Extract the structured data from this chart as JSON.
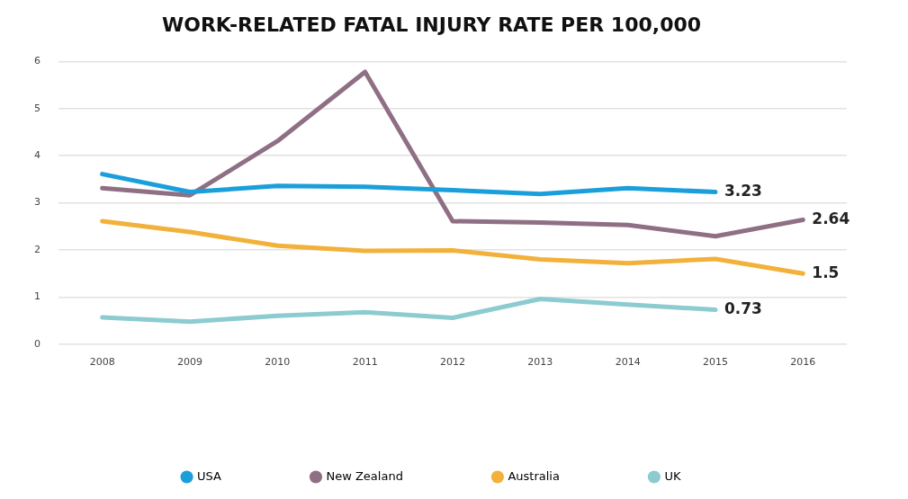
{
  "chart_data": {
    "type": "line",
    "title": "WORK-RELATED FATAL INJURY RATE PER 100,000",
    "categories": [
      "2008",
      "2009",
      "2010",
      "2011",
      "2012",
      "2013",
      "2014",
      "2015",
      "2016"
    ],
    "ylim": [
      0,
      6
    ],
    "yticks": [
      0,
      1,
      2,
      3,
      4,
      5,
      6
    ],
    "grid": "y",
    "legend": "bottom",
    "marker": "none",
    "line_style": "solid",
    "series": [
      {
        "name": "USA",
        "color": "#1a9fdb",
        "values": [
          3.61,
          3.23,
          3.36,
          3.34,
          3.27,
          3.19,
          3.31,
          3.23,
          null
        ],
        "value_labels": [
          null,
          null,
          null,
          null,
          null,
          null,
          null,
          "3.23",
          null
        ]
      },
      {
        "name": "New Zealand",
        "color": "#8f6f84",
        "values": [
          3.31,
          3.16,
          4.31,
          5.78,
          2.61,
          2.58,
          2.53,
          2.29,
          2.64
        ],
        "value_labels": [
          null,
          null,
          null,
          null,
          null,
          null,
          null,
          null,
          "2.64"
        ]
      },
      {
        "name": "Australia",
        "color": "#f2b13a",
        "values": [
          2.61,
          2.38,
          2.09,
          1.98,
          1.99,
          1.8,
          1.72,
          1.81,
          1.5
        ],
        "value_labels": [
          null,
          null,
          null,
          null,
          null,
          null,
          null,
          null,
          "1.5"
        ]
      },
      {
        "name": "UK",
        "color": "#8ccbd0",
        "values": [
          0.57,
          0.48,
          0.6,
          0.68,
          0.56,
          0.96,
          0.84,
          0.73,
          null
        ],
        "value_labels": [
          null,
          null,
          null,
          null,
          null,
          null,
          null,
          "0.73",
          null
        ]
      }
    ]
  }
}
